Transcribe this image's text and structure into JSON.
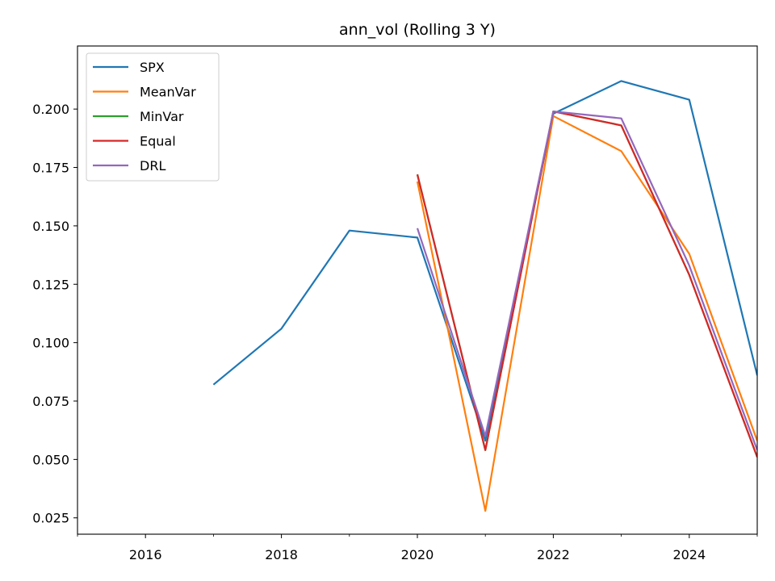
{
  "chart_data": {
    "type": "line",
    "title": "ann_vol (Rolling 3 Y)",
    "xlabel": "",
    "ylabel": "",
    "xlim": [
      2015.0,
      2025.0
    ],
    "ylim": [
      0.018,
      0.227
    ],
    "xticks": [
      2016,
      2018,
      2020,
      2022,
      2024
    ],
    "xticks_minor": [
      2015,
      2017,
      2019,
      2021,
      2023,
      2025
    ],
    "yticks": [
      0.025,
      0.05,
      0.075,
      0.1,
      0.125,
      0.15,
      0.175,
      0.2
    ],
    "ytick_labels": [
      "0.025",
      "0.050",
      "0.075",
      "0.100",
      "0.125",
      "0.150",
      "0.175",
      "0.200"
    ],
    "grid": false,
    "legend_position": "top-left",
    "series": [
      {
        "name": "SPX",
        "color": "#1f77b4",
        "x": [
          2017,
          2018,
          2019,
          2020,
          2021,
          2022,
          2023,
          2024,
          2025
        ],
        "y": [
          0.082,
          0.106,
          0.148,
          0.145,
          0.058,
          0.198,
          0.212,
          0.204,
          0.086
        ]
      },
      {
        "name": "MeanVar",
        "color": "#ff7f0e",
        "x": [
          2020,
          2021,
          2022,
          2023,
          2024,
          2025
        ],
        "y": [
          0.169,
          0.028,
          0.197,
          0.182,
          0.138,
          0.058
        ]
      },
      {
        "name": "MinVar",
        "color": "#2ca02c",
        "x": [
          2020,
          2021,
          2022,
          2023,
          2024,
          2025
        ],
        "y": [
          0.172,
          0.054,
          0.199,
          0.193,
          0.129,
          0.051
        ]
      },
      {
        "name": "Equal",
        "color": "#d62728",
        "x": [
          2020,
          2021,
          2022,
          2023,
          2024,
          2025
        ],
        "y": [
          0.172,
          0.054,
          0.199,
          0.193,
          0.129,
          0.051
        ]
      },
      {
        "name": "DRL",
        "color": "#9467bd",
        "x": [
          2020,
          2021,
          2022,
          2023,
          2024,
          2025
        ],
        "y": [
          0.149,
          0.06,
          0.199,
          0.196,
          0.133,
          0.054
        ]
      }
    ]
  }
}
